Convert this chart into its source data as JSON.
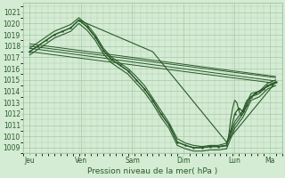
{
  "bg_color": "#d4ecd4",
  "grid_color": "#a8c8a8",
  "line_color": "#2a5a2a",
  "marker_color": "#2a5a2a",
  "title": "Pression niveau de la mer( hPa )",
  "x_labels": [
    "Jeu",
    "Ven",
    "Sam",
    "Dim",
    "Lun",
    "Ma"
  ],
  "x_ticks_norm": [
    0.0,
    0.208,
    0.417,
    0.625,
    0.833,
    0.975
  ],
  "ylim": [
    1008.5,
    1021.8
  ],
  "yticks": [
    1009,
    1010,
    1011,
    1012,
    1013,
    1014,
    1015,
    1016,
    1017,
    1018,
    1019,
    1020,
    1021
  ],
  "total_hours": 120,
  "lines_main": [
    {
      "x": [
        0,
        4,
        8,
        12,
        16,
        20,
        24,
        28,
        32,
        36,
        40,
        44,
        48,
        52,
        56,
        60,
        64,
        68,
        72,
        76,
        80,
        84,
        88,
        92,
        96,
        100,
        104,
        108,
        112,
        116,
        120
      ],
      "y": [
        1017.5,
        1018.0,
        1018.5,
        1019.0,
        1019.3,
        1019.6,
        1020.3,
        1019.7,
        1018.8,
        1017.6,
        1016.8,
        1016.3,
        1015.8,
        1015.0,
        1014.2,
        1013.2,
        1012.0,
        1011.0,
        1009.5,
        1009.2,
        1009.0,
        1009.0,
        1009.1,
        1009.1,
        1009.2,
        1011.0,
        1012.0,
        1013.5,
        1013.8,
        1014.5,
        1014.8
      ]
    },
    {
      "x": [
        0,
        4,
        8,
        12,
        16,
        20,
        24,
        28,
        32,
        36,
        40,
        44,
        48,
        52,
        56,
        60,
        64,
        68,
        72,
        76,
        80,
        84,
        88,
        92,
        96,
        100,
        104,
        108,
        112,
        116,
        120
      ],
      "y": [
        1017.8,
        1018.3,
        1018.8,
        1019.3,
        1019.6,
        1019.9,
        1020.5,
        1019.9,
        1019.0,
        1017.8,
        1017.0,
        1016.5,
        1016.0,
        1015.3,
        1014.5,
        1013.4,
        1012.3,
        1011.2,
        1009.8,
        1009.4,
        1009.2,
        1009.1,
        1009.2,
        1009.2,
        1009.4,
        1011.3,
        1012.3,
        1013.8,
        1014.0,
        1014.7,
        1015.0
      ]
    },
    {
      "x": [
        0,
        4,
        8,
        12,
        16,
        20,
        24,
        28,
        32,
        36,
        40,
        44,
        48,
        52,
        56,
        60,
        64,
        68,
        72,
        76,
        80,
        84,
        88,
        92,
        96,
        100,
        104,
        108,
        112,
        116,
        120
      ],
      "y": [
        1017.2,
        1017.7,
        1018.2,
        1018.7,
        1019.0,
        1019.3,
        1020.0,
        1019.4,
        1018.5,
        1017.3,
        1016.5,
        1016.0,
        1015.5,
        1014.7,
        1013.9,
        1012.9,
        1011.7,
        1010.7,
        1009.2,
        1008.9,
        1008.7,
        1008.7,
        1008.8,
        1008.8,
        1008.9,
        1010.7,
        1011.7,
        1013.2,
        1013.5,
        1014.2,
        1014.5
      ]
    }
  ],
  "lines_flat": [
    {
      "x": [
        0,
        120
      ],
      "y": [
        1018.0,
        1015.2
      ]
    },
    {
      "x": [
        0,
        120
      ],
      "y": [
        1017.5,
        1014.7
      ]
    },
    {
      "x": [
        0,
        120
      ],
      "y": [
        1017.8,
        1014.9
      ]
    },
    {
      "x": [
        0,
        120
      ],
      "y": [
        1018.2,
        1015.3
      ]
    }
  ],
  "line_peak_back": {
    "x": [
      24,
      60,
      96,
      120
    ],
    "y": [
      1020.3,
      1017.5,
      1009.5,
      1014.8
    ]
  },
  "line_Lun_spike": {
    "x": [
      92,
      94,
      96,
      97,
      98,
      99,
      100,
      101,
      102,
      103,
      104,
      105,
      106,
      108,
      110,
      112,
      114,
      116,
      118,
      120
    ],
    "y": [
      1009.1,
      1009.1,
      1009.2,
      1010.0,
      1011.5,
      1012.5,
      1013.2,
      1013.0,
      1012.3,
      1011.8,
      1012.3,
      1012.8,
      1013.2,
      1013.5,
      1013.8,
      1014.0,
      1014.2,
      1014.4,
      1014.6,
      1014.8
    ]
  },
  "marker_line": {
    "x": [
      0,
      4,
      8,
      12,
      16,
      20,
      24,
      28,
      32,
      36,
      40,
      44,
      48,
      52,
      56,
      60,
      64,
      68,
      72,
      76,
      80,
      84,
      88,
      92,
      96,
      98,
      100,
      102,
      104,
      106,
      108,
      110,
      112,
      114,
      116,
      118,
      120
    ],
    "y": [
      1017.5,
      1018.0,
      1018.5,
      1019.0,
      1019.3,
      1019.6,
      1020.3,
      1019.7,
      1018.8,
      1017.6,
      1016.8,
      1016.3,
      1015.8,
      1015.0,
      1014.2,
      1013.2,
      1012.0,
      1011.0,
      1009.5,
      1009.2,
      1009.0,
      1009.0,
      1009.1,
      1009.1,
      1009.2,
      1010.5,
      1012.0,
      1012.5,
      1012.2,
      1012.8,
      1013.5,
      1013.8,
      1014.0,
      1014.2,
      1014.5,
      1014.6,
      1014.8
    ]
  }
}
